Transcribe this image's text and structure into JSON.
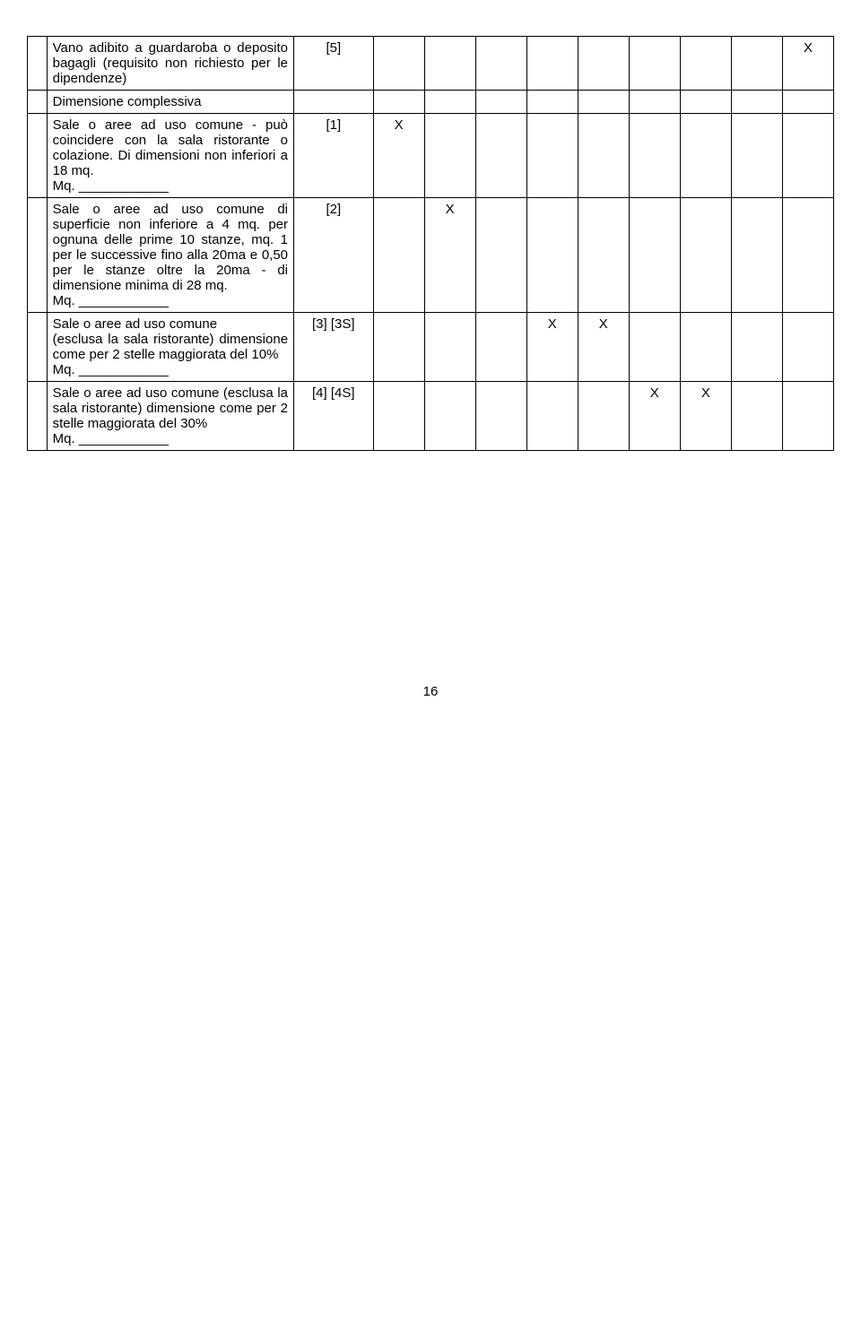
{
  "rows": [
    {
      "desc": "Vano adibito a guardaroba o deposito bagagli (requisito non richiesto per le dipendenze)",
      "code": "[5]",
      "marks": [
        "",
        "",
        "",
        "",
        "",
        "",
        "",
        "",
        "X"
      ]
    },
    {
      "desc": "Dimensione complessiva",
      "code": "",
      "marks": [
        "",
        "",
        "",
        "",
        "",
        "",
        "",
        "",
        ""
      ]
    },
    {
      "desc": "Sale o aree ad uso comune - può coincidere con la sala ristorante o colazione. Di dimensioni non inferiori a 18 mq.\nMq. ____________",
      "code": "[1]",
      "marks": [
        "X",
        "",
        "",
        "",
        "",
        "",
        "",
        "",
        ""
      ]
    },
    {
      "desc": "Sale o aree ad uso comune di superficie non inferiore a 4 mq. per ognuna delle prime 10 stanze, mq. 1 per le successive fino alla 20ma e 0,50 per le stanze oltre la 20ma - di dimensione minima di 28 mq.\nMq. ____________",
      "code": "[2]",
      "marks": [
        "",
        "X",
        "",
        "",
        "",
        "",
        "",
        "",
        ""
      ]
    },
    {
      "desc": "Sale o aree ad uso comune\n(esclusa la sala ristorante) dimensione come per 2 stelle maggiorata del 10%\nMq. ____________",
      "code": "[3] [3S]",
      "marks": [
        "",
        "",
        "",
        "X",
        "X",
        "",
        "",
        "",
        ""
      ]
    },
    {
      "desc": "Sale o aree ad uso comune (esclusa la sala ristorante) dimensione come per 2 stelle maggiorata del 30%\nMq. ____________",
      "code": "[4] [4S]",
      "marks": [
        "",
        "",
        "",
        "",
        "",
        "X",
        "X",
        "",
        ""
      ]
    }
  ],
  "page_number": "16"
}
